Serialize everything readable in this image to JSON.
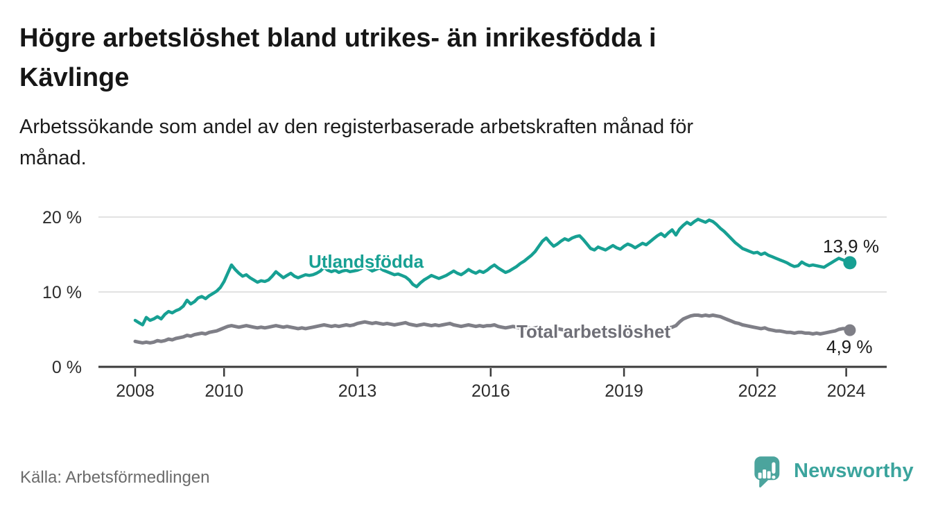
{
  "title": {
    "line1": "Högre arbetslöshet bland utrikes- än inrikesfödda i",
    "line2": "Kävlinge"
  },
  "subtitle": {
    "line1": "Arbetssökande som andel av den registerbaserade arbetskraften månad för",
    "line2": "månad."
  },
  "source": "Källa: Arbetsförmedlingen",
  "logo": {
    "text": "Newsworthy",
    "icon": "speech-bubble-bar-chart-icon",
    "icon_color": "#4ba49d",
    "text_color": "#3ba49d"
  },
  "colors": {
    "background": "#ffffff",
    "series_foreign_born": "#17a093",
    "series_total": "#7f7f87",
    "series_total_label": "#6f6f77",
    "axis": "#3a3a3a",
    "gridline": "#d9d9d9",
    "value_text": "#1b1b1b"
  },
  "chart_data": {
    "type": "line",
    "title": "Högre arbetslöshet bland utrikes- än inrikesfödda i Kävlinge",
    "subtitle": "Arbetssökande som andel av den registerbaserade arbetskraften månad för månad.",
    "xlabel": "",
    "ylabel": "",
    "x_unit": "month",
    "x_start": "2008-01",
    "x_end": "2024-02",
    "x_interval": "monthly",
    "x_ticks": [
      2008,
      2010,
      2013,
      2016,
      2019,
      2022,
      2024
    ],
    "y_ticks": [
      {
        "value": 0,
        "label": "0 %"
      },
      {
        "value": 10,
        "label": "10 %"
      },
      {
        "value": 20,
        "label": "20 %"
      }
    ],
    "ylim": [
      0,
      21.5
    ],
    "grid": "horizontal",
    "legend_position": "inline-labels",
    "series": [
      {
        "id": "utlandsfodda",
        "name": "Utlandsfödda",
        "color": "#17a093",
        "end_label": "13,9 %",
        "end_value": 13.9,
        "values": [
          6.2,
          5.9,
          5.6,
          6.6,
          6.2,
          6.4,
          6.7,
          6.4,
          7.0,
          7.4,
          7.2,
          7.5,
          7.7,
          8.1,
          8.9,
          8.4,
          8.7,
          9.2,
          9.4,
          9.1,
          9.5,
          9.8,
          10.1,
          10.6,
          11.4,
          12.5,
          13.6,
          13.0,
          12.5,
          12.1,
          12.3,
          11.9,
          11.6,
          11.3,
          11.5,
          11.4,
          11.6,
          12.1,
          12.7,
          12.3,
          11.9,
          12.2,
          12.5,
          12.1,
          11.9,
          12.1,
          12.3,
          12.2,
          12.3,
          12.5,
          12.8,
          13.3,
          12.9,
          12.7,
          12.9,
          12.6,
          12.8,
          12.9,
          12.7,
          12.8,
          12.9,
          13.1,
          13.4,
          13.1,
          12.8,
          13.0,
          13.2,
          12.9,
          12.7,
          12.5,
          12.3,
          12.4,
          12.2,
          12.0,
          11.6,
          11.0,
          10.7,
          11.2,
          11.6,
          11.9,
          12.2,
          12.0,
          11.8,
          12.0,
          12.2,
          12.5,
          12.8,
          12.5,
          12.3,
          12.6,
          13.0,
          12.7,
          12.5,
          12.8,
          12.6,
          12.9,
          13.3,
          13.6,
          13.2,
          12.9,
          12.6,
          12.8,
          13.1,
          13.4,
          13.8,
          14.1,
          14.5,
          14.9,
          15.4,
          16.1,
          16.8,
          17.2,
          16.6,
          16.1,
          16.4,
          16.8,
          17.1,
          16.9,
          17.2,
          17.4,
          17.5,
          17.0,
          16.4,
          15.8,
          15.6,
          16.0,
          15.8,
          15.6,
          15.9,
          16.2,
          15.9,
          15.7,
          16.1,
          16.4,
          16.2,
          15.9,
          16.2,
          16.5,
          16.3,
          16.7,
          17.1,
          17.5,
          17.8,
          17.4,
          17.9,
          18.3,
          17.6,
          18.4,
          18.9,
          19.3,
          19.0,
          19.4,
          19.7,
          19.5,
          19.3,
          19.6,
          19.4,
          19.0,
          18.5,
          18.1,
          17.6,
          17.1,
          16.6,
          16.2,
          15.8,
          15.6,
          15.4,
          15.2,
          15.3,
          15.0,
          15.2,
          14.9,
          14.7,
          14.5,
          14.3,
          14.1,
          13.9,
          13.6,
          13.4,
          13.5,
          14.0,
          13.7,
          13.5,
          13.6,
          13.5,
          13.4,
          13.3,
          13.6,
          13.9,
          14.2,
          14.5,
          14.3,
          14.1,
          13.9
        ]
      },
      {
        "id": "total-arbetsloshet",
        "name": "Total arbetslöshet",
        "color": "#7f7f87",
        "end_label": "4,9 %",
        "end_value": 4.9,
        "values": [
          3.4,
          3.3,
          3.2,
          3.3,
          3.2,
          3.3,
          3.5,
          3.4,
          3.5,
          3.7,
          3.6,
          3.8,
          3.9,
          4.0,
          4.2,
          4.1,
          4.3,
          4.4,
          4.5,
          4.4,
          4.6,
          4.7,
          4.8,
          5.0,
          5.2,
          5.4,
          5.5,
          5.4,
          5.3,
          5.4,
          5.5,
          5.4,
          5.3,
          5.2,
          5.3,
          5.2,
          5.3,
          5.4,
          5.5,
          5.4,
          5.3,
          5.4,
          5.3,
          5.2,
          5.1,
          5.2,
          5.1,
          5.2,
          5.3,
          5.4,
          5.5,
          5.6,
          5.5,
          5.4,
          5.5,
          5.4,
          5.5,
          5.6,
          5.5,
          5.6,
          5.8,
          5.9,
          6.0,
          5.9,
          5.8,
          5.9,
          5.8,
          5.7,
          5.8,
          5.7,
          5.6,
          5.7,
          5.8,
          5.9,
          5.7,
          5.6,
          5.5,
          5.6,
          5.7,
          5.6,
          5.5,
          5.6,
          5.5,
          5.6,
          5.7,
          5.8,
          5.6,
          5.5,
          5.4,
          5.5,
          5.6,
          5.5,
          5.4,
          5.5,
          5.4,
          5.5,
          5.5,
          5.6,
          5.4,
          5.3,
          5.2,
          5.3,
          5.4,
          5.3,
          5.2,
          5.3,
          5.2,
          5.1,
          5.2,
          5.3,
          5.1,
          5.0,
          4.9,
          5.0,
          5.1,
          5.0,
          4.9,
          5.0,
          4.9,
          4.8,
          4.9,
          5.0,
          4.8,
          4.7,
          4.6,
          4.7,
          4.8,
          4.7,
          4.6,
          4.7,
          4.6,
          4.5,
          4.6,
          4.7,
          4.6,
          4.5,
          4.6,
          4.7,
          4.6,
          4.7,
          4.8,
          4.9,
          5.0,
          5.1,
          5.2,
          5.3,
          5.5,
          6.0,
          6.4,
          6.6,
          6.8,
          6.9,
          6.9,
          6.8,
          6.9,
          6.8,
          6.9,
          6.8,
          6.7,
          6.5,
          6.3,
          6.1,
          5.9,
          5.8,
          5.6,
          5.5,
          5.4,
          5.3,
          5.2,
          5.1,
          5.2,
          5.0,
          4.9,
          4.8,
          4.8,
          4.7,
          4.6,
          4.6,
          4.5,
          4.6,
          4.6,
          4.5,
          4.5,
          4.4,
          4.5,
          4.4,
          4.5,
          4.6,
          4.7,
          4.8,
          5.0,
          5.1,
          5.1,
          4.9
        ]
      }
    ]
  }
}
